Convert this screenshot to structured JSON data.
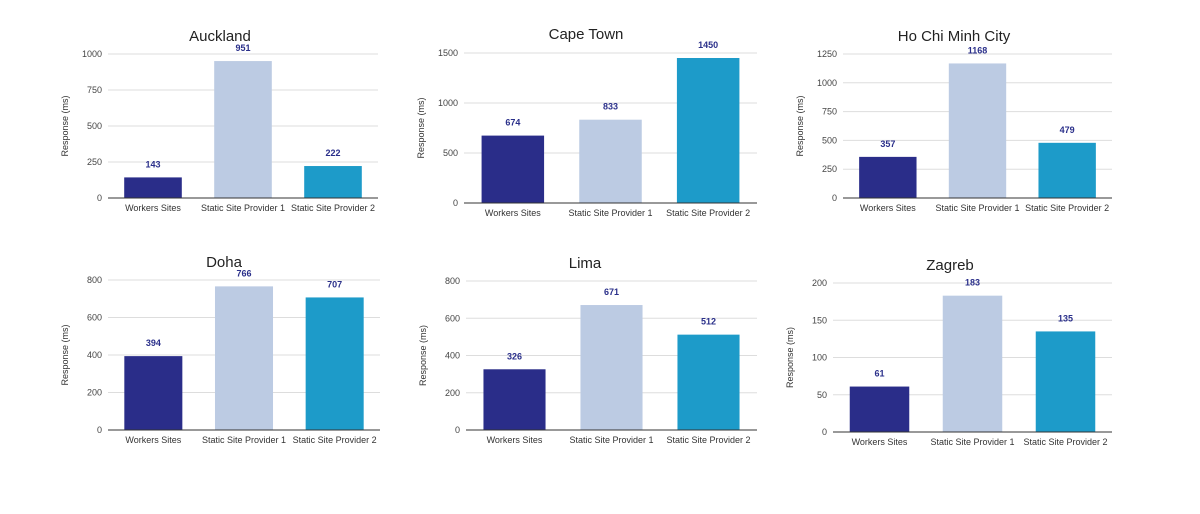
{
  "colors": {
    "series": [
      "#2a2d89",
      "#bccbe3",
      "#1d9bc9"
    ],
    "label": "#2a2f8a"
  },
  "chart_data": [
    {
      "type": "bar",
      "title": "Auckland",
      "ylabel": "Response (ms)",
      "categories": [
        "Workers Sites",
        "Static Site Provider 1",
        "Static Site Provider 2"
      ],
      "values": [
        143,
        951,
        222
      ],
      "yticks": [
        0,
        250,
        500,
        750,
        1000
      ],
      "ylim": [
        0,
        1000
      ]
    },
    {
      "type": "bar",
      "title": "Cape Town",
      "ylabel": "Response (ms)",
      "categories": [
        "Workers Sites",
        "Static Site Provider 1",
        "Static Site Provider 2"
      ],
      "values": [
        674,
        833,
        1450
      ],
      "yticks": [
        0,
        500,
        1000,
        1500
      ],
      "ylim": [
        0,
        1500
      ]
    },
    {
      "type": "bar",
      "title": "Ho Chi Minh City",
      "ylabel": "Response (ms)",
      "categories": [
        "Workers Sites",
        "Static Site Provider 1",
        "Static Site Provider 2"
      ],
      "values": [
        357,
        1168,
        479
      ],
      "yticks": [
        0,
        250,
        500,
        750,
        1000,
        1250
      ],
      "ylim": [
        0,
        1250
      ]
    },
    {
      "type": "bar",
      "title": "Doha",
      "ylabel": "Response (ms)",
      "categories": [
        "Workers Sites",
        "Static Site Provider 1",
        "Static Site Provider 2"
      ],
      "values": [
        394,
        766,
        707
      ],
      "yticks": [
        0,
        200,
        400,
        600,
        800
      ],
      "ylim": [
        0,
        800
      ]
    },
    {
      "type": "bar",
      "title": "Lima",
      "ylabel": "Response (ms)",
      "categories": [
        "Workers Sites",
        "Static Site Provider 1",
        "Static Site Provider 2"
      ],
      "values": [
        326,
        671,
        512
      ],
      "yticks": [
        0,
        200,
        400,
        600,
        800
      ],
      "ylim": [
        0,
        800
      ]
    },
    {
      "type": "bar",
      "title": "Zagreb",
      "ylabel": "Response (ms)",
      "categories": [
        "Workers Sites",
        "Static Site Provider 1",
        "Static Site Provider 2"
      ],
      "values": [
        61,
        183,
        135
      ],
      "yticks": [
        0,
        50,
        100,
        150,
        200
      ],
      "ylim": [
        0,
        200
      ]
    }
  ]
}
